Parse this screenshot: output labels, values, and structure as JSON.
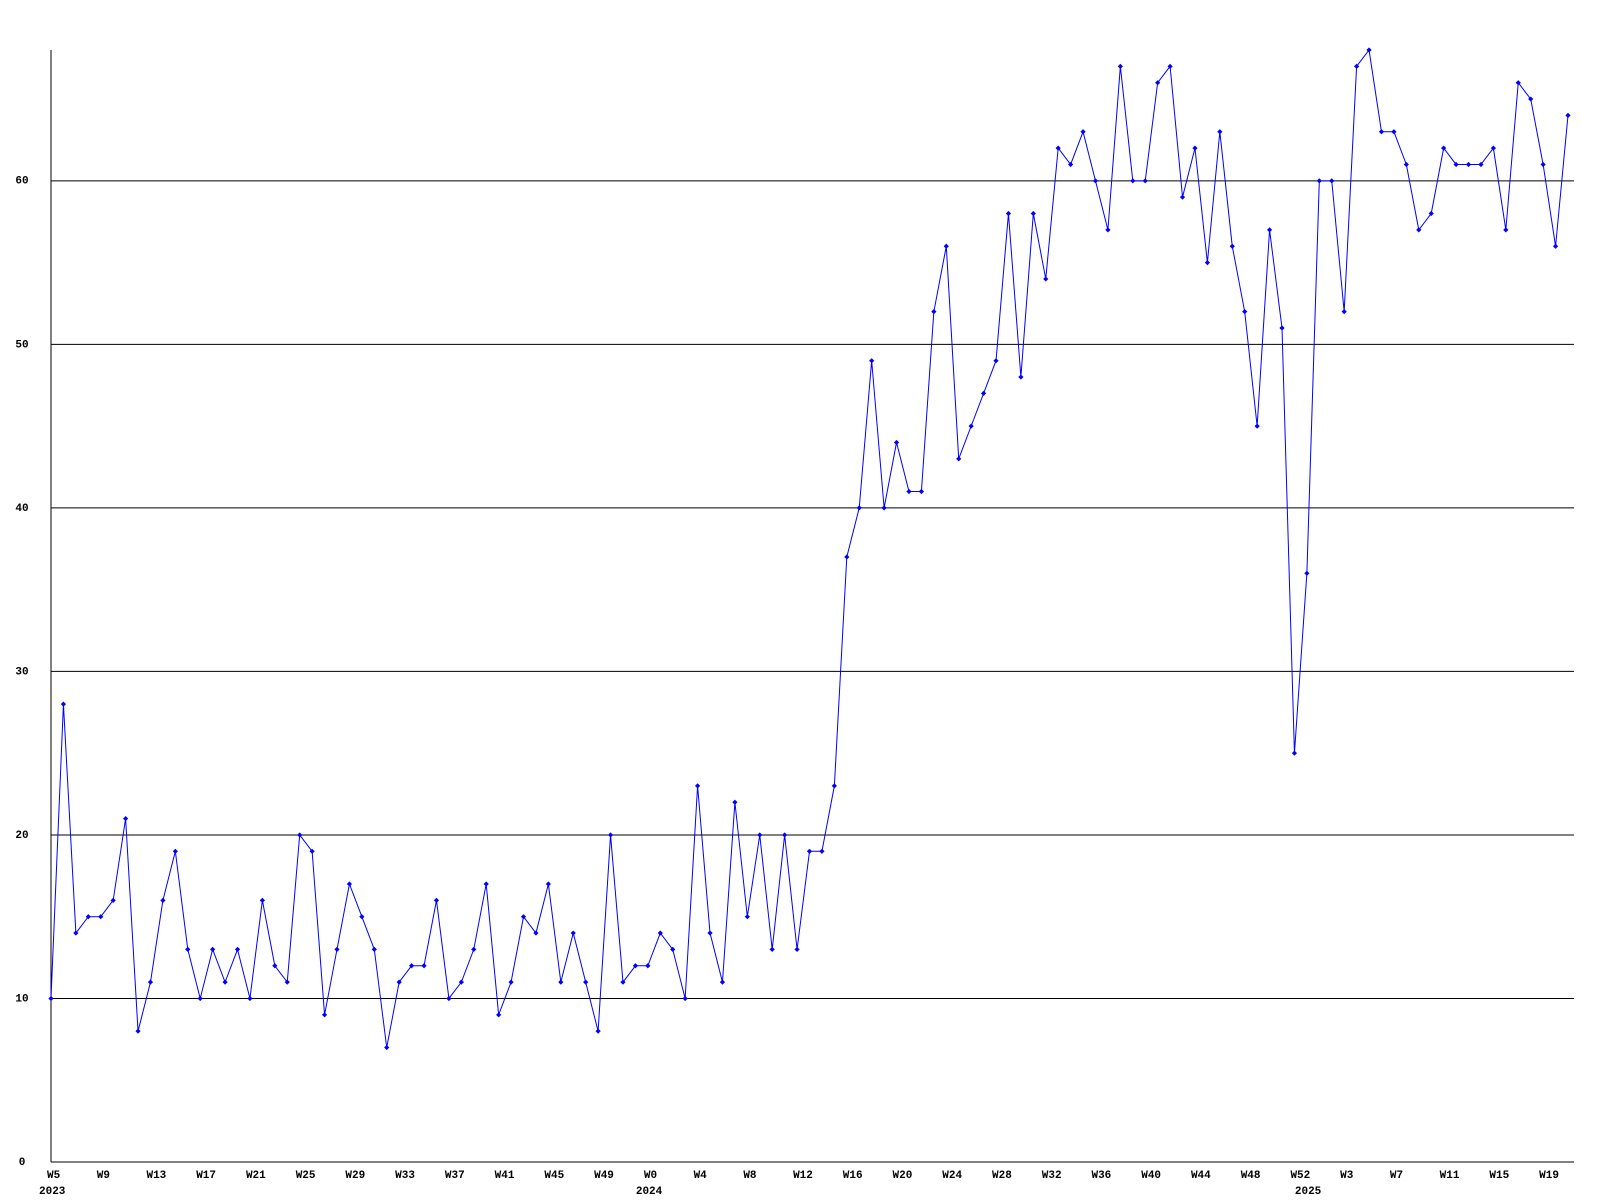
{
  "chart_data": {
    "type": "line",
    "categories": [
      "W5",
      null,
      null,
      null,
      "W9",
      null,
      null,
      null,
      "W13",
      null,
      null,
      null,
      "W17",
      null,
      null,
      null,
      "W21",
      null,
      null,
      null,
      "W25",
      null,
      null,
      null,
      "W29",
      null,
      null,
      null,
      "W33",
      null,
      null,
      null,
      "W37",
      null,
      null,
      null,
      "W41",
      null,
      null,
      null,
      "W45",
      null,
      null,
      null,
      "W49",
      null,
      null,
      null,
      "W0",
      null,
      null,
      null,
      "W4",
      null,
      null,
      null,
      "W8",
      null,
      null,
      null,
      "W12",
      null,
      null,
      null,
      "W16",
      null,
      null,
      null,
      "W20",
      null,
      null,
      null,
      "W24",
      null,
      null,
      null,
      "W28",
      null,
      null,
      null,
      "W32",
      null,
      null,
      null,
      "W36",
      null,
      null,
      null,
      "W40",
      null,
      null,
      null,
      "W44",
      null,
      null,
      null,
      "W48",
      null,
      null,
      null,
      "W52",
      null,
      null,
      null,
      "W3",
      null,
      null,
      null,
      "W7",
      null,
      null,
      null,
      "W11",
      null,
      null,
      null,
      "W15",
      null,
      null,
      null,
      "W19",
      null,
      null
    ],
    "years": [
      "2023",
      null,
      null,
      null,
      null,
      null,
      null,
      null,
      null,
      null,
      null,
      null,
      null,
      null,
      null,
      null,
      null,
      null,
      null,
      null,
      null,
      null,
      null,
      null,
      null,
      null,
      null,
      null,
      null,
      null,
      null,
      null,
      null,
      null,
      null,
      null,
      null,
      null,
      null,
      null,
      null,
      null,
      null,
      null,
      null,
      null,
      null,
      null,
      "2024",
      null,
      null,
      null,
      null,
      null,
      null,
      null,
      null,
      null,
      null,
      null,
      null,
      null,
      null,
      null,
      null,
      null,
      null,
      null,
      null,
      null,
      null,
      null,
      null,
      null,
      null,
      null,
      null,
      null,
      null,
      null,
      null,
      null,
      null,
      null,
      null,
      null,
      null,
      null,
      null,
      null,
      null,
      null,
      null,
      null,
      null,
      null,
      null,
      null,
      null,
      null,
      null,
      "2025",
      null,
      null,
      null,
      null,
      null,
      null,
      null,
      null,
      null,
      null,
      null,
      null,
      null,
      null,
      null,
      null,
      null,
      null,
      null,
      null,
      null
    ],
    "series": [
      {
        "color": "#0000ff",
        "values": [
          10,
          28,
          14,
          15,
          15,
          16,
          21,
          8,
          11,
          16,
          19,
          13,
          10,
          13,
          11,
          13,
          10,
          16,
          12,
          11,
          20,
          19,
          9,
          13,
          17,
          15,
          13,
          7,
          11,
          12,
          12,
          16,
          10,
          11,
          13,
          17,
          9,
          11,
          15,
          14,
          17,
          11,
          14,
          11,
          8,
          20,
          11,
          12,
          12,
          14,
          13,
          10,
          23,
          14,
          11,
          22,
          15,
          20,
          13,
          20,
          13,
          19,
          19,
          23,
          37,
          40,
          49,
          40,
          44,
          41,
          41,
          52,
          56,
          43,
          45,
          47,
          49,
          58,
          48,
          58,
          54,
          62,
          61,
          63,
          60,
          57,
          67,
          60,
          60,
          66,
          67,
          59,
          62,
          55,
          63,
          56,
          52,
          45,
          57,
          51,
          25,
          36,
          60,
          60,
          52,
          67,
          68,
          63,
          63,
          61,
          57,
          58,
          62,
          61,
          61,
          61,
          62,
          57,
          66,
          65,
          61,
          56,
          64
        ]
      }
    ],
    "ylim": [
      0,
      68
    ],
    "yticks": [
      0,
      10,
      20,
      30,
      40,
      50,
      60
    ],
    "grid": true
  }
}
